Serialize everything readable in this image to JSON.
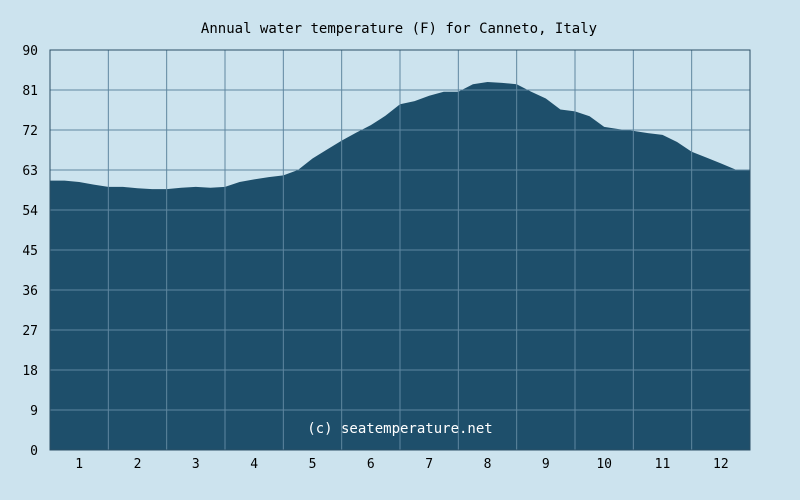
{
  "chart_data": {
    "type": "area",
    "title": "Annual water temperature (F) for Canneto, Italy",
    "xlabel": "",
    "ylabel": "",
    "x_ticks": [
      "1",
      "2",
      "3",
      "4",
      "5",
      "6",
      "7",
      "8",
      "9",
      "10",
      "11",
      "12"
    ],
    "y_ticks": [
      "0",
      "9",
      "18",
      "27",
      "36",
      "45",
      "54",
      "63",
      "72",
      "81",
      "90"
    ],
    "xlim": [
      0.5,
      12.5
    ],
    "ylim": [
      0,
      90
    ],
    "grid": true,
    "legend": "none",
    "x": [
      0.5,
      0.75,
      1.0,
      1.25,
      1.5,
      1.75,
      2.0,
      2.25,
      2.5,
      2.75,
      3.0,
      3.25,
      3.5,
      3.75,
      4.0,
      4.25,
      4.5,
      4.75,
      5.0,
      5.25,
      5.5,
      5.75,
      6.0,
      6.25,
      6.5,
      6.75,
      7.0,
      7.25,
      7.5,
      7.75,
      8.0,
      8.25,
      8.5,
      8.75,
      9.0,
      9.25,
      9.5,
      9.75,
      10.0,
      10.25,
      10.5,
      10.75,
      11.0,
      11.25,
      11.5,
      11.75,
      12.0,
      12.25,
      12.5
    ],
    "values": [
      60.6,
      60.6,
      60.3,
      59.7,
      59.2,
      59.2,
      58.9,
      58.7,
      58.7,
      59.0,
      59.2,
      59.0,
      59.2,
      60.3,
      60.9,
      61.4,
      61.8,
      63.0,
      65.6,
      67.6,
      69.6,
      71.4,
      73.1,
      75.2,
      77.8,
      78.5,
      79.7,
      80.6,
      80.6,
      82.3,
      82.8,
      82.6,
      82.3,
      80.6,
      79.1,
      76.6,
      76.2,
      75.1,
      72.7,
      72.2,
      71.8,
      71.3,
      70.9,
      69.3,
      67.1,
      65.8,
      64.5,
      63.1,
      62.9
    ],
    "watermark": "(c) seatemperature.net",
    "colors": {
      "background": "#cce3ee",
      "area": "#1e4f6b",
      "grid": "#5f87a0",
      "frame": "#2b4f66"
    }
  }
}
